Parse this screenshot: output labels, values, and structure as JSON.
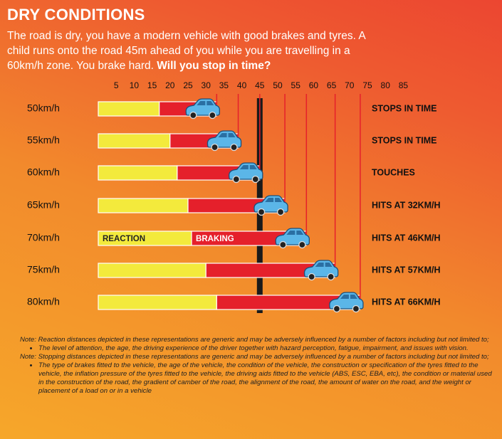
{
  "chart_data": {
    "type": "bar",
    "orientation": "horizontal",
    "stacked": true,
    "title": "DRY CONDITIONS",
    "subtitle": "The road is dry, you have a modern vehicle with good brakes and tyres. A child runs onto the road 45m ahead of you while you are travelling in a 60km/h zone. You brake hard.",
    "subtitle_emphasis": "Will you stop in time?",
    "categories": [
      "50km/h",
      "55km/h",
      "60km/h",
      "65km/h",
      "70km/h",
      "75km/h",
      "80km/h"
    ],
    "series": [
      {
        "name": "REACTION",
        "color": "#f3ea3c",
        "values": [
          17,
          20,
          22,
          25,
          26,
          30,
          33
        ]
      },
      {
        "name": "BRAKING",
        "color": "#e5202b",
        "values": [
          16,
          19,
          23,
          27,
          32,
          36,
          40
        ]
      }
    ],
    "outcomes": [
      "STOPS IN TIME",
      "STOPS IN TIME",
      "TOUCHES",
      "HITS AT 32KM/H",
      "HITS AT 46KM/H",
      "HITS AT 57KM/H",
      "HITS AT 66KM/H"
    ],
    "xlim": [
      0,
      90
    ],
    "xticks": [
      5,
      10,
      15,
      20,
      25,
      30,
      35,
      40,
      45,
      50,
      55,
      60,
      65,
      70,
      75,
      80,
      85
    ],
    "notes": [
      {
        "text": "Note: Reaction distances depicted in these representations are generic and may be adversely influenced by a number of factors including but not limited to;",
        "bullets": [
          "The level of attention, the age, the driving experience of the driver together with hazard perception, fatigue, impairment, and issues with vision."
        ]
      },
      {
        "text": "Note: Stopping distances depicted in these representations are generic and may be adversely influenced by a number of factors including but not limited to;",
        "bullets": [
          "The type of brakes fitted to the vehicle, the age of the vehicle, the condition of the vehicle, the construction or specification of the tyres fitted to the vehicle, the inflation pressure of the tyres fitted to the vehicle, the driving aids fitted to the vehicle (ABS, ESC, EBA, etc), the condition or material used in the construction of the road, the gradient of camber of the road, the alignment of the road, the amount of water on the road, and the weight or placement of a load on or in a vehicle"
        ]
      }
    ]
  }
}
